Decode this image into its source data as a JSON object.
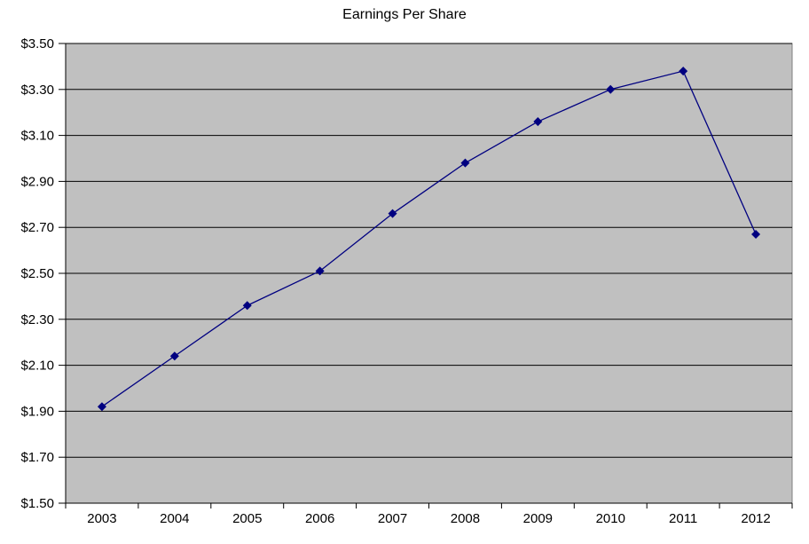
{
  "page": {
    "background": "#ffffff"
  },
  "chart_data": {
    "type": "line",
    "title": "Earnings Per Share",
    "xlabel": "",
    "ylabel": "",
    "x": [
      "2003",
      "2004",
      "2005",
      "2006",
      "2007",
      "2008",
      "2009",
      "2010",
      "2011",
      "2012"
    ],
    "series": [
      {
        "name": "Earnings Per Share",
        "marker": "diamond",
        "values": [
          1.92,
          2.14,
          2.36,
          2.51,
          2.76,
          2.98,
          3.16,
          3.3,
          3.38,
          2.67
        ]
      }
    ],
    "ylim": [
      1.5,
      3.5
    ],
    "y_step": 0.2,
    "y_ticks": [
      {
        "value": 1.5,
        "label": "$1.50"
      },
      {
        "value": 1.7,
        "label": "$1.70"
      },
      {
        "value": 1.9,
        "label": "$1.90"
      },
      {
        "value": 2.1,
        "label": "$2.10"
      },
      {
        "value": 2.3,
        "label": "$2.30"
      },
      {
        "value": 2.5,
        "label": "$2.50"
      },
      {
        "value": 2.7,
        "label": "$2.70"
      },
      {
        "value": 2.9,
        "label": "$2.90"
      },
      {
        "value": 3.1,
        "label": "$3.10"
      },
      {
        "value": 3.3,
        "label": "$3.30"
      },
      {
        "value": 3.5,
        "label": "$3.50"
      }
    ],
    "grid": true,
    "legend_position": "none",
    "colors": {
      "line": "#000080",
      "plot_background": "#c0c0c0",
      "plot_border": "#808080",
      "gridline": "#000000",
      "axis": "#000000",
      "text": "#000000",
      "page_background": "#ffffff"
    }
  }
}
